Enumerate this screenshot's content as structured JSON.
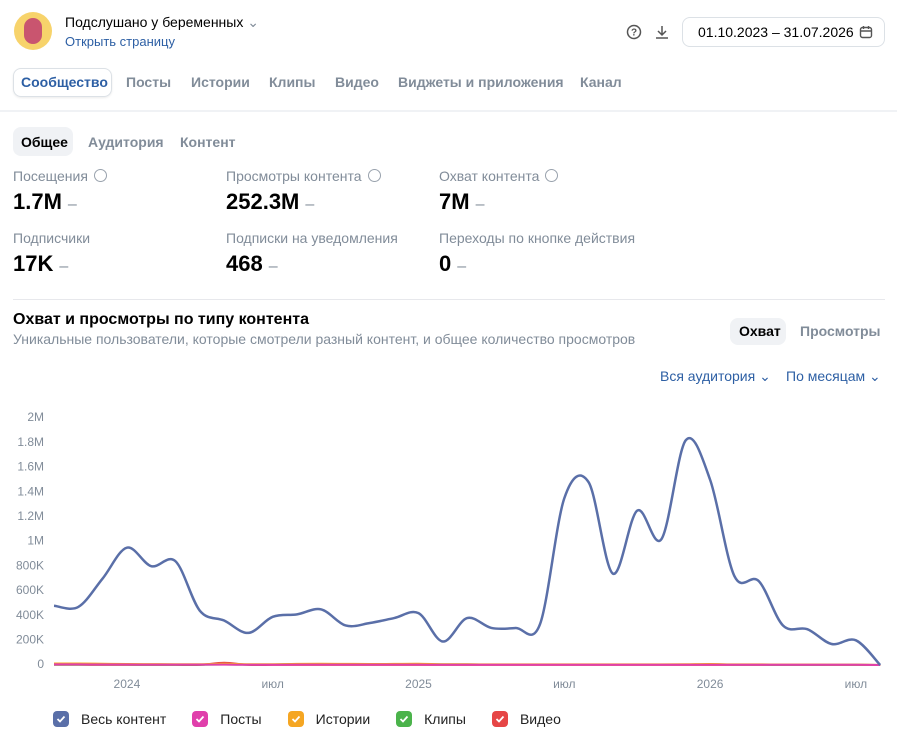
{
  "header": {
    "community": "Подслушано у беременных",
    "open_link": "Открыть страницу",
    "date_range": "01.10.2023 – 31.07.2026"
  },
  "tabs": [
    "Сообщество",
    "Посты",
    "Истории",
    "Клипы",
    "Видео",
    "Виджеты и приложения",
    "Канал"
  ],
  "subtabs": [
    "Общее",
    "Аудитория",
    "Контент"
  ],
  "metrics": [
    {
      "label": "Посещения",
      "value": "1.7M",
      "change": "–"
    },
    {
      "label": "Просмотры контента",
      "value": "252.3M",
      "change": "–"
    },
    {
      "label": "Охват контента",
      "value": "7M",
      "change": "–"
    },
    {
      "label": "Подписчики",
      "value": "17K",
      "change": "–"
    },
    {
      "label": "Подписки на уведомления",
      "value": "468",
      "change": "–"
    },
    {
      "label": "Переходы по кнопке действия",
      "value": "0",
      "change": "–"
    }
  ],
  "toggle": [
    "Охват",
    "Просмотры"
  ],
  "filters": [
    "Вся аудитория",
    "По месяцам"
  ],
  "chart_data": {
    "type": "line",
    "title": "Охват и просмотры по типу контента",
    "subtitle": "Уникальные пользователи, которые смотрели разный контент, и общее количество просмотров",
    "categories": [
      null,
      null,
      null,
      "2024",
      null,
      null,
      null,
      null,
      null,
      "июл",
      null,
      null,
      null,
      null,
      null,
      "2025",
      null,
      null,
      null,
      null,
      null,
      "июл",
      null,
      null,
      null,
      null,
      null,
      "2026",
      null,
      null,
      null,
      null,
      null,
      "июл",
      null
    ],
    "series": [
      {
        "name": "Весь контент",
        "color": "#5a6fa8",
        "values": [
          480000,
          470000,
          700000,
          950000,
          800000,
          840000,
          440000,
          360000,
          260000,
          390000,
          410000,
          450000,
          320000,
          340000,
          380000,
          420000,
          190000,
          380000,
          300000,
          300000,
          330000,
          1350000,
          1480000,
          740000,
          1250000,
          1020000,
          1820000,
          1500000,
          720000,
          680000,
          320000,
          290000,
          170000,
          200000,
          0
        ]
      },
      {
        "name": "Посты",
        "color": "#e03fab",
        "values": [
          5000,
          5000,
          4000,
          4000,
          3000,
          3000,
          3000,
          3000,
          2000,
          2000,
          3000,
          3000,
          3000,
          3000,
          3000,
          3000,
          2000,
          2000,
          2000,
          2000,
          2000,
          2000,
          2000,
          2000,
          2000,
          2000,
          2000,
          2000,
          2000,
          2000,
          2000,
          2000,
          2000,
          2000,
          0
        ]
      },
      {
        "name": "Истории",
        "color": "#f5a623",
        "values": [
          12000,
          12000,
          10000,
          8000,
          7000,
          6000,
          6000,
          10000,
          6000,
          6000,
          9000,
          10000,
          9000,
          8000,
          9000,
          10000,
          6000,
          6000,
          5000,
          5000,
          5000,
          5000,
          5000,
          5000,
          5000,
          5000,
          6000,
          8000,
          5000,
          5000,
          4000,
          4000,
          3000,
          3000,
          0
        ]
      },
      {
        "name": "Клипы",
        "color": "#4bb34b",
        "values": [
          3000,
          3000,
          3000,
          3000,
          2000,
          2000,
          2000,
          4000,
          3000,
          4000,
          8000,
          8000,
          7000,
          7000,
          8000,
          8000,
          5000,
          5000,
          4000,
          4000,
          4000,
          4000,
          4000,
          4000,
          4000,
          4000,
          4000,
          5000,
          3000,
          3000,
          2000,
          2000,
          2000,
          2000,
          0
        ]
      },
      {
        "name": "Видео",
        "color": "#e64646",
        "values": [
          2000,
          2000,
          1000,
          1000,
          1000,
          1000,
          1000,
          18000,
          1000,
          1000,
          1000,
          1000,
          1000,
          1000,
          1000,
          1000,
          1000,
          1000,
          1000,
          1000,
          1000,
          1000,
          1000,
          1000,
          1000,
          1000,
          1000,
          1000,
          1000,
          1000,
          1000,
          1000,
          1000,
          1000,
          0
        ]
      }
    ],
    "ylim": [
      0,
      2000000
    ],
    "yticks": [
      0,
      {
        "value": 200000,
        "label": "200K"
      },
      {
        "value": 400000,
        "label": "400K"
      },
      {
        "value": 600000,
        "label": "600K"
      },
      {
        "value": 800000,
        "label": "800K"
      },
      {
        "value": 1000000,
        "label": "1M"
      },
      {
        "value": 1200000,
        "label": "1.2M"
      },
      {
        "value": 1400000,
        "label": "1.4M"
      },
      {
        "value": 1600000,
        "label": "1.6M"
      },
      {
        "value": 1800000,
        "label": "1.8M"
      },
      {
        "value": 2000000,
        "label": "2M"
      }
    ],
    "grid": false
  }
}
